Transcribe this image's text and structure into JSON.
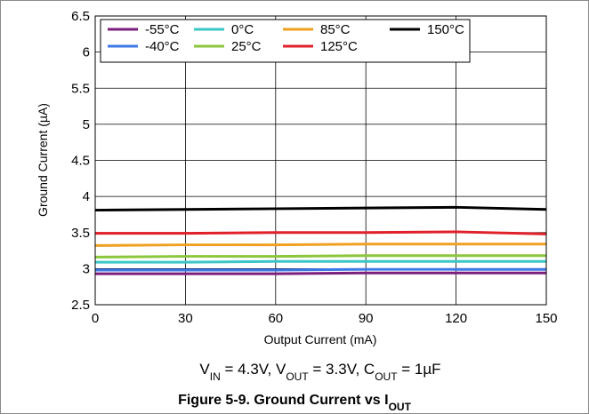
{
  "chart_data": {
    "type": "line",
    "caption_main": "Figure 5-9. Ground Current vs I",
    "caption_sub": "OUT",
    "xlabel": "Output Current (mA)",
    "ylabel": "Ground Current (µA)",
    "xlim": [
      0,
      150
    ],
    "ylim": [
      2.5,
      6.5
    ],
    "xticks": [
      "0",
      "30",
      "60",
      "90",
      "120",
      "150"
    ],
    "yticks": [
      "2.5",
      "3",
      "3.5",
      "4",
      "4.5",
      "5",
      "5.5",
      "6",
      "6.5"
    ],
    "grid": true,
    "legend_position": "top",
    "conditions": {
      "vin_label": "V",
      "vin_sub": "IN",
      "vin_value": " = 4.3V, ",
      "vout_label": "V",
      "vout_sub": "OUT",
      "vout_value": " = 3.3V, ",
      "cout_label": "C",
      "cout_sub": "OUT",
      "cout_value": " = 1µF"
    },
    "x": [
      0,
      30,
      60,
      90,
      120,
      150
    ],
    "series": [
      {
        "name": "-55°C",
        "color": "#7b1f7d",
        "values": [
          2.93,
          2.93,
          2.93,
          2.94,
          2.94,
          2.94
        ]
      },
      {
        "name": "-40°C",
        "color": "#3c78e6",
        "values": [
          2.98,
          2.98,
          2.98,
          2.99,
          2.99,
          2.99
        ]
      },
      {
        "name": "0°C",
        "color": "#3cc6c6",
        "values": [
          3.09,
          3.09,
          3.1,
          3.1,
          3.1,
          3.1
        ]
      },
      {
        "name": "25°C",
        "color": "#8cc63c",
        "values": [
          3.16,
          3.17,
          3.17,
          3.18,
          3.18,
          3.18
        ]
      },
      {
        "name": "85°C",
        "color": "#f0a020",
        "values": [
          3.32,
          3.33,
          3.33,
          3.34,
          3.34,
          3.34
        ]
      },
      {
        "name": "125°C",
        "color": "#e0202a",
        "values": [
          3.49,
          3.49,
          3.5,
          3.5,
          3.51,
          3.48
        ]
      },
      {
        "name": "150°C",
        "color": "#000000",
        "values": [
          3.81,
          3.82,
          3.83,
          3.84,
          3.85,
          3.82
        ]
      }
    ]
  }
}
